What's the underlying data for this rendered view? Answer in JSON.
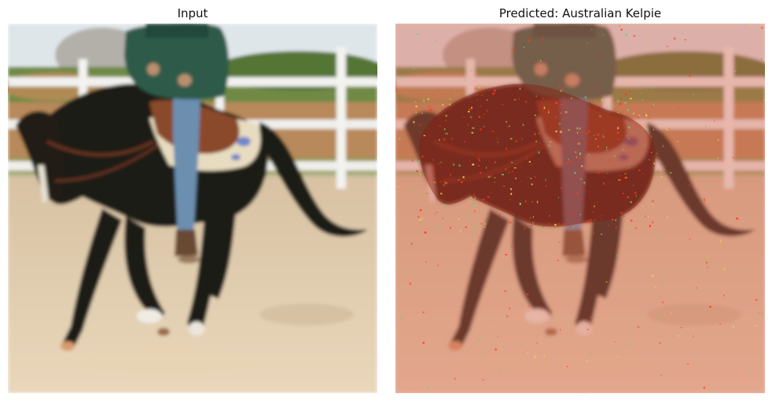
{
  "figure": {
    "panels": [
      {
        "title": "Input",
        "image": "horse-rider-photo",
        "overlay": "none"
      },
      {
        "title": "Predicted: Australian Kelpie",
        "image": "horse-rider-photo",
        "overlay": "saliency-heatmap"
      }
    ]
  },
  "colors": {
    "background": "#ffffff",
    "sky": "#dfe6ea",
    "trees": "#5f7f3a",
    "fence": "#f2f2f0",
    "ground": "#d9c2a0",
    "horse": "#1e1c16",
    "jacket": "#2e5a4a",
    "jeans": "#6c8fb0",
    "saddle": "#8a4a2a",
    "blanket": "#e8dcc0",
    "heatmap_tint": "#d86a55",
    "heatmap_speck_red": "#ff3a1e",
    "heatmap_speck_yellow": "#e8e04a",
    "heatmap_speck_green": "#6ad46a"
  }
}
